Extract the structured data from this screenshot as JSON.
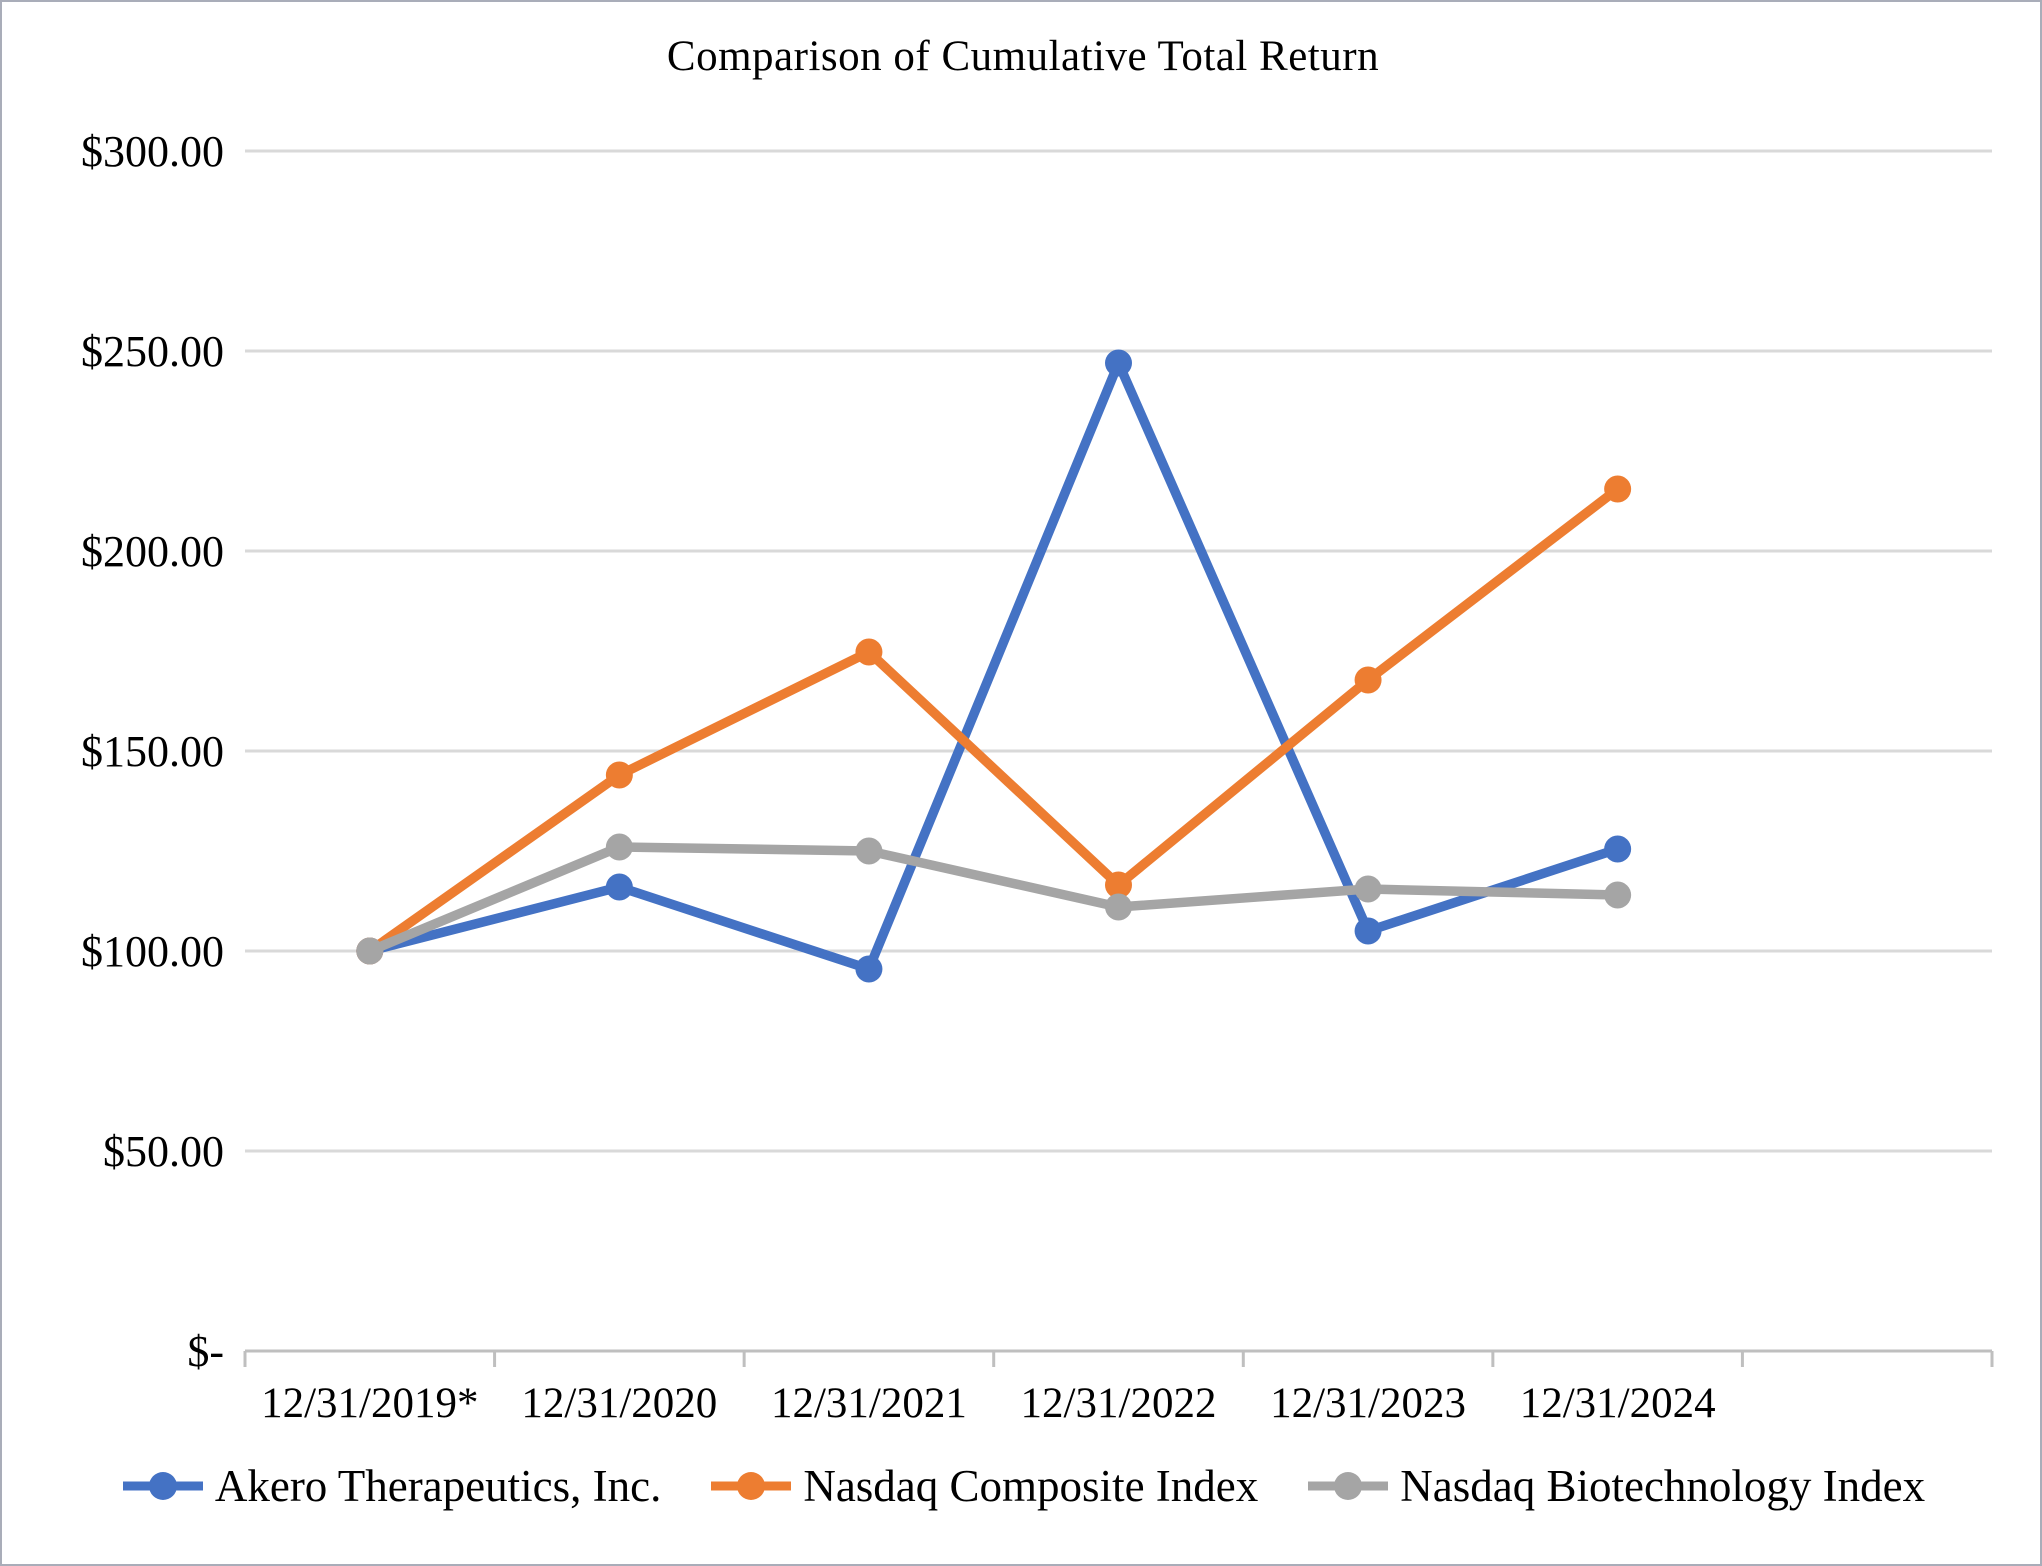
{
  "chart": {
    "background": "#ffffff",
    "border_color": "#a9adb9",
    "gridline_color": "#d9d9d9",
    "axis_line_color": "#bfbfbf",
    "text_color": "#000000"
  },
  "chart_data": {
    "type": "line",
    "title": "Comparison of Cumulative Total Return",
    "categories": [
      "12/31/2019*",
      "12/31/2020",
      "12/31/2021",
      "12/31/2022",
      "12/31/2023",
      "12/31/2024"
    ],
    "series": [
      {
        "name": "Akero Therapeutics, Inc.",
        "color": "#4472C4",
        "values": [
          100,
          116,
          95.5,
          247,
          105,
          125.5
        ]
      },
      {
        "name": "Nasdaq Composite Index",
        "color": "#ED7D31",
        "values": [
          100,
          144,
          174.75,
          116.5,
          167.75,
          215.5
        ]
      },
      {
        "name": "Nasdaq Biotechnology Index",
        "color": "#A5A5A5",
        "values": [
          100,
          126,
          125,
          111,
          115.5,
          114
        ]
      }
    ],
    "y_ticks": [
      {
        "label": "$300.00",
        "value": 300
      },
      {
        "label": "$250.00",
        "value": 250
      },
      {
        "label": "$200.00",
        "value": 200
      },
      {
        "label": "$150.00",
        "value": 150
      },
      {
        "label": "$100.00",
        "value": 100
      },
      {
        "label": "$50.00",
        "value": 50
      },
      {
        "label": "$-",
        "value": 0
      }
    ],
    "ylim": [
      0,
      300
    ],
    "grid": true,
    "legend_position": "bottom",
    "marker": "circle"
  }
}
